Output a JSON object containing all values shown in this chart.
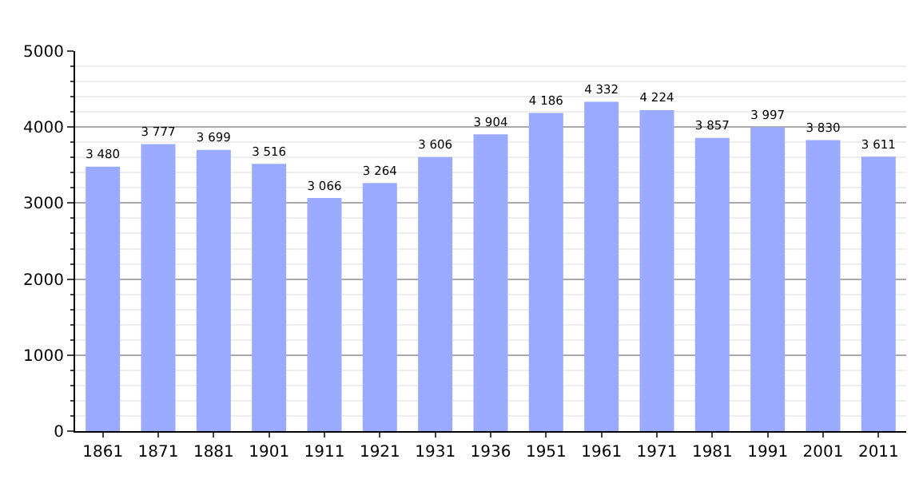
{
  "chart_data": {
    "type": "bar",
    "categories": [
      "1861",
      "1871",
      "1881",
      "1901",
      "1911",
      "1921",
      "1931",
      "1936",
      "1951",
      "1961",
      "1971",
      "1981",
      "1991",
      "2001",
      "2011"
    ],
    "values": [
      3480,
      3777,
      3699,
      3516,
      3066,
      3264,
      3606,
      3904,
      4186,
      4332,
      4224,
      3857,
      3997,
      3830,
      3611
    ],
    "value_labels": [
      "3 480",
      "3 777",
      "3 699",
      "3 516",
      "3 066",
      "3 264",
      "3 606",
      "3 904",
      "4 186",
      "4 332",
      "4 224",
      "3 857",
      "3 997",
      "3 830",
      "3 611"
    ],
    "color": "#99aaff",
    "ylim": [
      0,
      5000
    ],
    "yticks": [
      0,
      1000,
      2000,
      3000,
      4000,
      5000
    ],
    "grid": "y",
    "legend": false
  }
}
